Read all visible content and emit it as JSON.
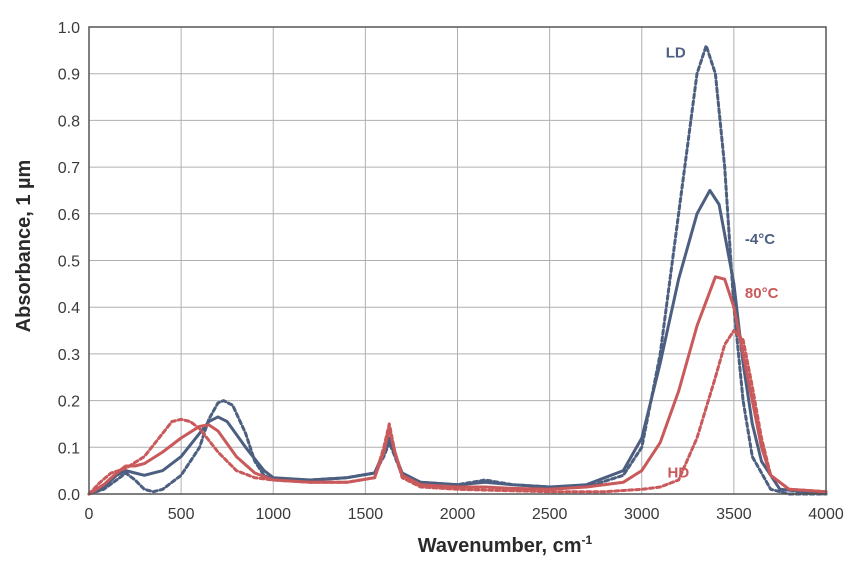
{
  "chart_data": {
    "type": "line",
    "title": "",
    "xlabel": "Wavenumber, cm",
    "xlabel_sup": "-1",
    "ylabel": "Absorbance, 1 µm",
    "xlim": [
      0,
      4000
    ],
    "ylim": [
      0,
      1.0
    ],
    "grid": true,
    "legend": "none",
    "xticks": [
      0,
      500,
      1000,
      1500,
      2000,
      2500,
      3000,
      3500,
      4000
    ],
    "yticks": [
      "0.0",
      "0.1",
      "0.2",
      "0.3",
      "0.4",
      "0.5",
      "0.6",
      "0.7",
      "0.8",
      "0.9",
      "1.0"
    ],
    "colors": {
      "blue": "#4d5f80",
      "red": "#c9595a",
      "grid": "#b0b0b0"
    },
    "annotations": [
      {
        "id": "ld",
        "text": "LD",
        "color": "#4d5f80",
        "x": 3130,
        "y": 0.935
      },
      {
        "id": "m4",
        "text": "-4°C",
        "color": "#4d5f80",
        "x": 3560,
        "y": 0.535
      },
      {
        "id": "t80",
        "text": "80°C",
        "color": "#c9595a",
        "x": 3560,
        "y": 0.42
      },
      {
        "id": "hd",
        "text": "HD",
        "color": "#c9595a",
        "x": 3140,
        "y": 0.035
      }
    ],
    "series": [
      {
        "color": "#4d5f80",
        "dash": true,
        "points": [
          [
            0,
            0
          ],
          [
            80,
            0.01
          ],
          [
            150,
            0.03
          ],
          [
            200,
            0.045
          ],
          [
            250,
            0.03
          ],
          [
            300,
            0.01
          ],
          [
            350,
            0.005
          ],
          [
            400,
            0.01
          ],
          [
            500,
            0.04
          ],
          [
            600,
            0.1
          ],
          [
            650,
            0.16
          ],
          [
            700,
            0.195
          ],
          [
            730,
            0.2
          ],
          [
            780,
            0.19
          ],
          [
            850,
            0.13
          ],
          [
            900,
            0.07
          ],
          [
            950,
            0.04
          ],
          [
            1000,
            0.03
          ],
          [
            1200,
            0.03
          ],
          [
            1400,
            0.035
          ],
          [
            1550,
            0.045
          ],
          [
            1600,
            0.08
          ],
          [
            1630,
            0.11
          ],
          [
            1660,
            0.08
          ],
          [
            1700,
            0.04
          ],
          [
            1800,
            0.025
          ],
          [
            2000,
            0.02
          ],
          [
            2150,
            0.03
          ],
          [
            2300,
            0.02
          ],
          [
            2500,
            0.015
          ],
          [
            2700,
            0.015
          ],
          [
            2900,
            0.04
          ],
          [
            3000,
            0.1
          ],
          [
            3100,
            0.3
          ],
          [
            3200,
            0.6
          ],
          [
            3300,
            0.9
          ],
          [
            3350,
            0.96
          ],
          [
            3400,
            0.9
          ],
          [
            3450,
            0.7
          ],
          [
            3500,
            0.4
          ],
          [
            3550,
            0.2
          ],
          [
            3600,
            0.08
          ],
          [
            3700,
            0.01
          ],
          [
            3800,
            0
          ],
          [
            4000,
            0
          ]
        ]
      },
      {
        "color": "#4d5f80",
        "dash": false,
        "points": [
          [
            0,
            0
          ],
          [
            80,
            0.015
          ],
          [
            150,
            0.04
          ],
          [
            200,
            0.05
          ],
          [
            250,
            0.045
          ],
          [
            300,
            0.04
          ],
          [
            400,
            0.05
          ],
          [
            500,
            0.08
          ],
          [
            600,
            0.13
          ],
          [
            650,
            0.155
          ],
          [
            700,
            0.165
          ],
          [
            750,
            0.155
          ],
          [
            850,
            0.1
          ],
          [
            950,
            0.05
          ],
          [
            1000,
            0.035
          ],
          [
            1200,
            0.03
          ],
          [
            1400,
            0.035
          ],
          [
            1550,
            0.045
          ],
          [
            1600,
            0.09
          ],
          [
            1630,
            0.12
          ],
          [
            1660,
            0.085
          ],
          [
            1700,
            0.045
          ],
          [
            1800,
            0.025
          ],
          [
            2000,
            0.02
          ],
          [
            2150,
            0.025
          ],
          [
            2300,
            0.02
          ],
          [
            2500,
            0.015
          ],
          [
            2700,
            0.02
          ],
          [
            2900,
            0.05
          ],
          [
            3000,
            0.12
          ],
          [
            3100,
            0.28
          ],
          [
            3200,
            0.46
          ],
          [
            3300,
            0.6
          ],
          [
            3370,
            0.65
          ],
          [
            3420,
            0.62
          ],
          [
            3500,
            0.45
          ],
          [
            3550,
            0.28
          ],
          [
            3600,
            0.15
          ],
          [
            3650,
            0.07
          ],
          [
            3750,
            0.01
          ],
          [
            4000,
            0
          ]
        ]
      },
      {
        "color": "#c9595a",
        "dash": false,
        "points": [
          [
            0,
            0
          ],
          [
            80,
            0.02
          ],
          [
            150,
            0.045
          ],
          [
            200,
            0.06
          ],
          [
            250,
            0.06
          ],
          [
            300,
            0.065
          ],
          [
            400,
            0.09
          ],
          [
            500,
            0.12
          ],
          [
            600,
            0.145
          ],
          [
            650,
            0.148
          ],
          [
            700,
            0.135
          ],
          [
            800,
            0.08
          ],
          [
            900,
            0.045
          ],
          [
            1000,
            0.03
          ],
          [
            1200,
            0.025
          ],
          [
            1400,
            0.025
          ],
          [
            1550,
            0.035
          ],
          [
            1600,
            0.09
          ],
          [
            1630,
            0.14
          ],
          [
            1660,
            0.09
          ],
          [
            1700,
            0.04
          ],
          [
            1800,
            0.02
          ],
          [
            2000,
            0.015
          ],
          [
            2150,
            0.015
          ],
          [
            2300,
            0.012
          ],
          [
            2500,
            0.01
          ],
          [
            2700,
            0.015
          ],
          [
            2900,
            0.025
          ],
          [
            3000,
            0.05
          ],
          [
            3100,
            0.11
          ],
          [
            3200,
            0.22
          ],
          [
            3300,
            0.36
          ],
          [
            3400,
            0.465
          ],
          [
            3450,
            0.46
          ],
          [
            3500,
            0.4
          ],
          [
            3550,
            0.3
          ],
          [
            3600,
            0.2
          ],
          [
            3650,
            0.1
          ],
          [
            3700,
            0.04
          ],
          [
            3800,
            0.01
          ],
          [
            4000,
            0.005
          ]
        ]
      },
      {
        "color": "#c9595a",
        "dash": true,
        "points": [
          [
            0,
            0
          ],
          [
            60,
            0.025
          ],
          [
            120,
            0.045
          ],
          [
            200,
            0.055
          ],
          [
            300,
            0.08
          ],
          [
            400,
            0.13
          ],
          [
            450,
            0.155
          ],
          [
            500,
            0.16
          ],
          [
            550,
            0.155
          ],
          [
            600,
            0.14
          ],
          [
            700,
            0.09
          ],
          [
            800,
            0.05
          ],
          [
            900,
            0.035
          ],
          [
            1000,
            0.03
          ],
          [
            1200,
            0.025
          ],
          [
            1400,
            0.025
          ],
          [
            1550,
            0.035
          ],
          [
            1600,
            0.1
          ],
          [
            1630,
            0.15
          ],
          [
            1660,
            0.09
          ],
          [
            1700,
            0.035
          ],
          [
            1800,
            0.015
          ],
          [
            2000,
            0.01
          ],
          [
            2200,
            0.008
          ],
          [
            2500,
            0.005
          ],
          [
            2800,
            0.005
          ],
          [
            3000,
            0.01
          ],
          [
            3100,
            0.015
          ],
          [
            3200,
            0.03
          ],
          [
            3300,
            0.12
          ],
          [
            3400,
            0.25
          ],
          [
            3450,
            0.32
          ],
          [
            3500,
            0.35
          ],
          [
            3550,
            0.33
          ],
          [
            3600,
            0.23
          ],
          [
            3650,
            0.12
          ],
          [
            3700,
            0.04
          ],
          [
            3800,
            0.01
          ],
          [
            4000,
            0.005
          ]
        ]
      }
    ]
  }
}
